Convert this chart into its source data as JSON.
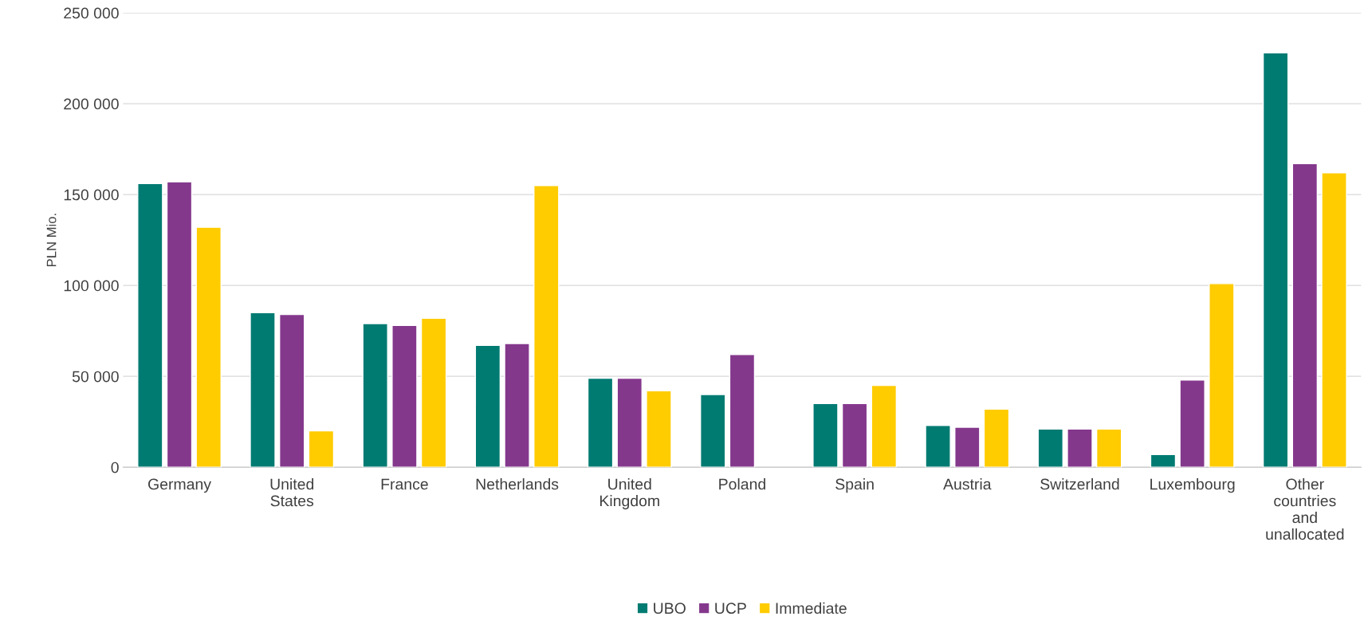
{
  "chart_data": {
    "type": "bar",
    "ylabel": "PLN Mio.",
    "categories": [
      "Germany",
      "United\nStates",
      "France",
      "Netherlands",
      "United\nKingdom",
      "Poland",
      "Spain",
      "Austria",
      "Switzerland",
      "Luxembourg",
      "Other\ncountries\nand\nunallocated"
    ],
    "series": [
      {
        "name": "UBO",
        "color": "#007b72",
        "values": [
          156000,
          85000,
          79000,
          67000,
          49000,
          40000,
          35000,
          23000,
          21000,
          7000,
          228000
        ]
      },
      {
        "name": "UCP",
        "color": "#84388c",
        "values": [
          157000,
          84000,
          78000,
          68000,
          49000,
          62000,
          35000,
          22000,
          21000,
          48000,
          167000
        ]
      },
      {
        "name": "Immediate",
        "color": "#ffcc00",
        "values": [
          132000,
          20000,
          82000,
          155000,
          42000,
          null,
          45000,
          32000,
          21000,
          101000,
          162000
        ]
      }
    ],
    "ylim": [
      0,
      250000
    ],
    "yticks": [
      {
        "value": 0,
        "label": "0"
      },
      {
        "value": 50000,
        "label": "50 000"
      },
      {
        "value": 100000,
        "label": "100 000"
      },
      {
        "value": 150000,
        "label": "150 000"
      },
      {
        "value": 200000,
        "label": "200 000"
      },
      {
        "value": 250000,
        "label": "250 000"
      }
    ],
    "grid": "y",
    "legend": "bottom"
  }
}
